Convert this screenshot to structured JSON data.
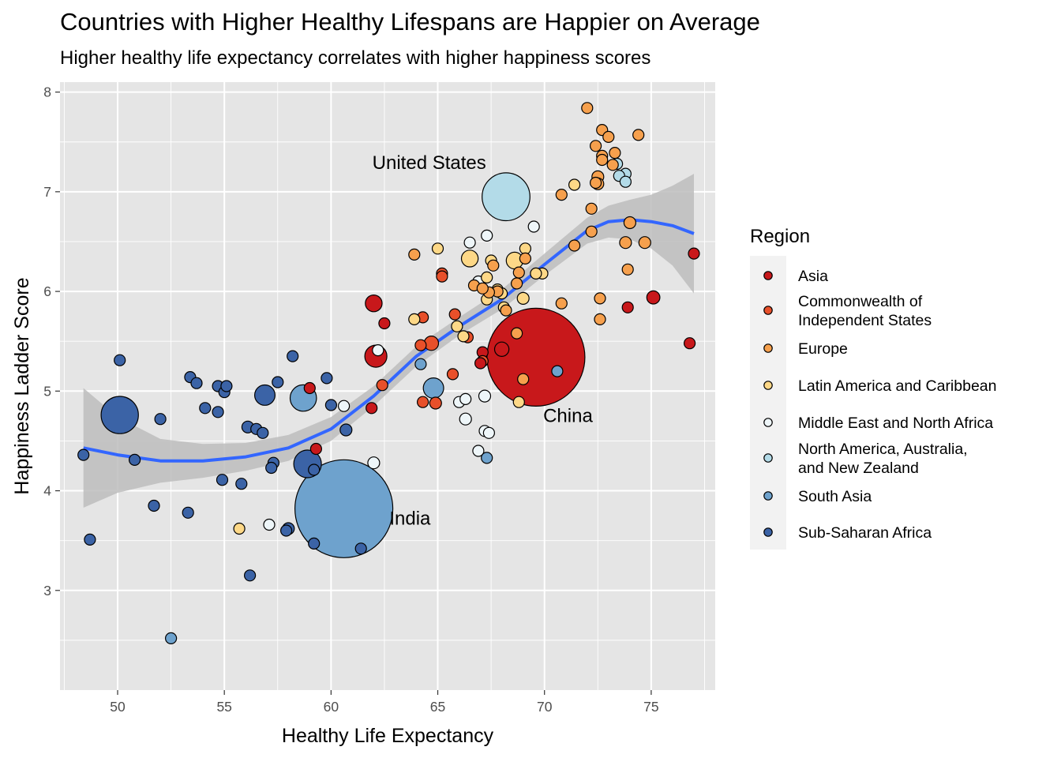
{
  "title": "Countries with Higher Healthy Lifespans are Happier on Average",
  "subtitle": "Higher healthy life expectancy correlates with higher happiness scores",
  "colors": {
    "panel_bg": "#e5e5e5",
    "grid": "#ffffff",
    "smooth_line": "#3366ff",
    "ribbon": "#bdbdbd",
    "Asia": "#c8181b",
    "Commonwealth of Independent States": "#e8502a",
    "Europe": "#f6a04d",
    "Latin America and Caribbean": "#fdd887",
    "Middle East and North Africa": "#eef6f9",
    "North America, Australia, and New Zealand": "#b3dbe8",
    "South Asia": "#6ea2cd",
    "Sub-Saharan Africa": "#3b63a6"
  },
  "chart_data": {
    "type": "scatter",
    "title": "Countries with Higher Healthy Lifespans are Happier on Average",
    "subtitle": "Higher healthy life expectancy correlates with higher happiness scores",
    "xlabel": "Healthy Life Expectancy",
    "ylabel": "Happiness Ladder Score",
    "xlim": [
      47.3,
      78.0
    ],
    "ylim": [
      2.0,
      8.1
    ],
    "xticks": [
      50,
      55,
      60,
      65,
      70,
      75
    ],
    "yticks": [
      3,
      4,
      5,
      6,
      7,
      8
    ],
    "grid": true,
    "legend": {
      "title": "Region",
      "placement": "right",
      "entries": [
        {
          "region": "Asia",
          "lines": [
            "Asia"
          ]
        },
        {
          "region": "Commonwealth of Independent States",
          "lines": [
            "Commonwealth of",
            "Independent States"
          ]
        },
        {
          "region": "Europe",
          "lines": [
            "Europe"
          ]
        },
        {
          "region": "Latin America and Caribbean",
          "lines": [
            "Latin America and Caribbean"
          ]
        },
        {
          "region": "Middle East and North Africa",
          "lines": [
            "Middle East and North Africa"
          ]
        },
        {
          "region": "North America, Australia, and New Zealand",
          "lines": [
            "North America, Australia,",
            "and New Zealand"
          ]
        },
        {
          "region": "South Asia",
          "lines": [
            "South Asia"
          ]
        },
        {
          "region": "Sub-Saharan Africa",
          "lines": [
            "Sub-Saharan Africa"
          ]
        }
      ]
    },
    "annotations": [
      {
        "text": "United States",
        "x": 64.6,
        "y": 7.23
      },
      {
        "text": "China",
        "x": 71.1,
        "y": 4.69
      },
      {
        "text": "India",
        "x": 63.7,
        "y": 3.66
      }
    ],
    "smooth": {
      "x": [
        48.4,
        50,
        52,
        54,
        56,
        58,
        60,
        62,
        64,
        66,
        68,
        70,
        72,
        73,
        74,
        75,
        76,
        77
      ],
      "y": [
        4.43,
        4.36,
        4.3,
        4.3,
        4.34,
        4.43,
        4.62,
        4.95,
        5.35,
        5.65,
        5.92,
        6.27,
        6.61,
        6.7,
        6.72,
        6.7,
        6.66,
        6.58
      ],
      "lower": [
        3.83,
        3.98,
        4.08,
        4.13,
        4.2,
        4.3,
        4.5,
        4.85,
        5.25,
        5.56,
        5.82,
        6.16,
        6.48,
        6.54,
        6.52,
        6.43,
        6.26,
        5.98
      ],
      "upper": [
        5.03,
        4.74,
        4.52,
        4.47,
        4.48,
        4.56,
        4.74,
        5.05,
        5.45,
        5.74,
        6.02,
        6.38,
        6.74,
        6.86,
        6.92,
        6.97,
        7.06,
        7.18
      ]
    },
    "size_note": "marker size scales with population",
    "series": [
      {
        "name": "Asia",
        "points": [
          {
            "x": 69.6,
            "y": 5.34,
            "size": 1411
          },
          {
            "x": 62.1,
            "y": 5.35,
            "size": 70
          },
          {
            "x": 62.0,
            "y": 5.88,
            "size": 40
          },
          {
            "x": 68.0,
            "y": 5.42,
            "size": 30
          },
          {
            "x": 75.1,
            "y": 5.94,
            "size": 25
          },
          {
            "x": 73.9,
            "y": 5.84,
            "size": 12
          },
          {
            "x": 77.0,
            "y": 6.38,
            "size": 10
          },
          {
            "x": 76.8,
            "y": 5.48,
            "size": 10
          },
          {
            "x": 62.5,
            "y": 5.68,
            "size": 8
          },
          {
            "x": 61.9,
            "y": 4.83,
            "size": 8
          },
          {
            "x": 59.0,
            "y": 5.03,
            "size": 7
          },
          {
            "x": 67.1,
            "y": 5.39,
            "size": 9
          },
          {
            "x": 67.0,
            "y": 5.28,
            "size": 8
          },
          {
            "x": 59.3,
            "y": 4.42,
            "size": 12
          }
        ]
      },
      {
        "name": "Commonwealth of Independent States",
        "points": [
          {
            "x": 64.7,
            "y": 5.48,
            "size": 30
          },
          {
            "x": 65.2,
            "y": 6.18,
            "size": 10
          },
          {
            "x": 65.2,
            "y": 6.15,
            "size": 10
          },
          {
            "x": 64.3,
            "y": 5.74,
            "size": 10
          },
          {
            "x": 64.2,
            "y": 5.46,
            "size": 10
          },
          {
            "x": 64.9,
            "y": 4.88,
            "size": 20
          },
          {
            "x": 64.3,
            "y": 4.89,
            "size": 9
          },
          {
            "x": 62.4,
            "y": 5.06,
            "size": 9
          },
          {
            "x": 65.8,
            "y": 5.77,
            "size": 9
          },
          {
            "x": 65.7,
            "y": 5.17,
            "size": 9
          },
          {
            "x": 66.4,
            "y": 5.54,
            "size": 9
          },
          {
            "x": 67.1,
            "y": 5.3,
            "size": 9
          }
        ]
      },
      {
        "name": "Europe",
        "points": [
          {
            "x": 72.0,
            "y": 7.84,
            "size": 6
          },
          {
            "x": 72.7,
            "y": 7.62,
            "size": 6
          },
          {
            "x": 74.4,
            "y": 7.57,
            "size": 6
          },
          {
            "x": 73.0,
            "y": 7.55,
            "size": 6
          },
          {
            "x": 72.4,
            "y": 7.46,
            "size": 6
          },
          {
            "x": 73.3,
            "y": 7.39,
            "size": 6
          },
          {
            "x": 72.7,
            "y": 7.36,
            "size": 6
          },
          {
            "x": 72.7,
            "y": 7.32,
            "size": 6
          },
          {
            "x": 73.2,
            "y": 7.27,
            "size": 6
          },
          {
            "x": 72.5,
            "y": 7.15,
            "size": 20
          },
          {
            "x": 72.5,
            "y": 7.08,
            "size": 20
          },
          {
            "x": 72.4,
            "y": 7.09,
            "size": 6
          },
          {
            "x": 70.8,
            "y": 6.97,
            "size": 6
          },
          {
            "x": 72.2,
            "y": 6.83,
            "size": 6
          },
          {
            "x": 74.0,
            "y": 6.69,
            "size": 20
          },
          {
            "x": 72.2,
            "y": 6.6,
            "size": 6
          },
          {
            "x": 73.8,
            "y": 6.49,
            "size": 20
          },
          {
            "x": 74.7,
            "y": 6.49,
            "size": 20
          },
          {
            "x": 71.4,
            "y": 6.46,
            "size": 6
          },
          {
            "x": 69.1,
            "y": 6.33,
            "size": 6
          },
          {
            "x": 73.9,
            "y": 6.22,
            "size": 6
          },
          {
            "x": 68.8,
            "y": 6.19,
            "size": 6
          },
          {
            "x": 72.6,
            "y": 5.93,
            "size": 6
          },
          {
            "x": 70.8,
            "y": 5.88,
            "size": 6
          },
          {
            "x": 72.6,
            "y": 5.72,
            "size": 6
          },
          {
            "x": 68.2,
            "y": 5.81,
            "size": 6
          },
          {
            "x": 68.7,
            "y": 5.58,
            "size": 6
          },
          {
            "x": 69.0,
            "y": 5.12,
            "size": 6
          },
          {
            "x": 63.9,
            "y": 6.37,
            "size": 6
          },
          {
            "x": 67.6,
            "y": 6.26,
            "size": 6
          },
          {
            "x": 66.7,
            "y": 6.06,
            "size": 6
          },
          {
            "x": 67.8,
            "y": 6.0,
            "size": 6
          },
          {
            "x": 68.7,
            "y": 6.08,
            "size": 6
          },
          {
            "x": 67.4,
            "y": 5.99,
            "size": 6
          },
          {
            "x": 67.1,
            "y": 6.03,
            "size": 6
          }
        ]
      },
      {
        "name": "Latin America and Caribbean",
        "points": [
          {
            "x": 66.5,
            "y": 6.33,
            "size": 40
          },
          {
            "x": 68.6,
            "y": 6.31,
            "size": 40
          },
          {
            "x": 69.0,
            "y": 5.93,
            "size": 20
          },
          {
            "x": 68.8,
            "y": 4.89,
            "size": 12
          },
          {
            "x": 65.0,
            "y": 6.43,
            "size": 7
          },
          {
            "x": 69.1,
            "y": 6.43,
            "size": 7
          },
          {
            "x": 67.5,
            "y": 6.31,
            "size": 7
          },
          {
            "x": 67.3,
            "y": 6.14,
            "size": 7
          },
          {
            "x": 69.9,
            "y": 6.18,
            "size": 7
          },
          {
            "x": 69.6,
            "y": 6.18,
            "size": 7
          },
          {
            "x": 67.8,
            "y": 6.02,
            "size": 7
          },
          {
            "x": 68.0,
            "y": 5.98,
            "size": 7
          },
          {
            "x": 67.3,
            "y": 5.92,
            "size": 7
          },
          {
            "x": 68.1,
            "y": 5.84,
            "size": 7
          },
          {
            "x": 63.9,
            "y": 5.72,
            "size": 7
          },
          {
            "x": 65.9,
            "y": 5.65,
            "size": 7
          },
          {
            "x": 66.2,
            "y": 5.55,
            "size": 7
          },
          {
            "x": 71.4,
            "y": 7.07,
            "size": 7
          },
          {
            "x": 55.7,
            "y": 3.62,
            "size": 7
          }
        ]
      },
      {
        "name": "Middle East and North Africa",
        "points": [
          {
            "x": 62.0,
            "y": 4.28,
            "size": 20
          },
          {
            "x": 60.6,
            "y": 4.85,
            "size": 9
          },
          {
            "x": 57.1,
            "y": 3.66,
            "size": 9
          },
          {
            "x": 62.2,
            "y": 5.41,
            "size": 6
          },
          {
            "x": 67.2,
            "y": 4.95,
            "size": 20
          },
          {
            "x": 66.3,
            "y": 4.72,
            "size": 20
          },
          {
            "x": 66.0,
            "y": 4.89,
            "size": 9
          },
          {
            "x": 66.3,
            "y": 4.92,
            "size": 9
          },
          {
            "x": 67.2,
            "y": 4.6,
            "size": 9
          },
          {
            "x": 67.4,
            "y": 4.58,
            "size": 9
          },
          {
            "x": 66.9,
            "y": 4.4,
            "size": 9
          },
          {
            "x": 66.5,
            "y": 6.49,
            "size": 9
          },
          {
            "x": 67.3,
            "y": 6.56,
            "size": 9
          },
          {
            "x": 66.9,
            "y": 6.1,
            "size": 9
          },
          {
            "x": 69.5,
            "y": 6.65,
            "size": 9
          }
        ]
      },
      {
        "name": "North America, Australia, and New Zealand",
        "points": [
          {
            "x": 68.2,
            "y": 6.95,
            "size": 330
          },
          {
            "x": 73.4,
            "y": 7.28,
            "size": 10
          },
          {
            "x": 73.8,
            "y": 7.18,
            "size": 10
          },
          {
            "x": 73.5,
            "y": 7.16,
            "size": 10
          },
          {
            "x": 73.8,
            "y": 7.1,
            "size": 10
          }
        ]
      },
      {
        "name": "South Asia",
        "points": [
          {
            "x": 60.6,
            "y": 3.82,
            "size": 1380
          },
          {
            "x": 58.7,
            "y": 4.93,
            "size": 100
          },
          {
            "x": 64.8,
            "y": 5.03,
            "size": 60
          },
          {
            "x": 52.5,
            "y": 2.52,
            "size": 15
          },
          {
            "x": 64.2,
            "y": 5.27,
            "size": 10
          },
          {
            "x": 70.6,
            "y": 5.2,
            "size": 6
          },
          {
            "x": 67.3,
            "y": 4.33,
            "size": 7
          }
        ]
      },
      {
        "name": "Sub-Saharan Africa",
        "points": [
          {
            "x": 50.1,
            "y": 4.76,
            "size": 200
          },
          {
            "x": 58.9,
            "y": 4.27,
            "size": 110
          },
          {
            "x": 56.9,
            "y": 4.96,
            "size": 60
          },
          {
            "x": 50.1,
            "y": 5.31,
            "size": 15
          },
          {
            "x": 48.4,
            "y": 4.36,
            "size": 15
          },
          {
            "x": 48.7,
            "y": 3.51,
            "size": 15
          },
          {
            "x": 50.8,
            "y": 4.31,
            "size": 15
          },
          {
            "x": 51.7,
            "y": 3.85,
            "size": 15
          },
          {
            "x": 52.0,
            "y": 4.72,
            "size": 15
          },
          {
            "x": 53.4,
            "y": 5.14,
            "size": 15
          },
          {
            "x": 53.7,
            "y": 5.08,
            "size": 15
          },
          {
            "x": 54.1,
            "y": 4.83,
            "size": 15
          },
          {
            "x": 53.3,
            "y": 3.78,
            "size": 15
          },
          {
            "x": 54.7,
            "y": 5.05,
            "size": 15
          },
          {
            "x": 55.0,
            "y": 4.99,
            "size": 15
          },
          {
            "x": 55.1,
            "y": 5.05,
            "size": 15
          },
          {
            "x": 54.7,
            "y": 4.79,
            "size": 15
          },
          {
            "x": 54.9,
            "y": 4.11,
            "size": 15
          },
          {
            "x": 55.8,
            "y": 4.07,
            "size": 15
          },
          {
            "x": 56.1,
            "y": 4.64,
            "size": 20
          },
          {
            "x": 56.5,
            "y": 4.62,
            "size": 15
          },
          {
            "x": 56.8,
            "y": 4.58,
            "size": 15
          },
          {
            "x": 57.5,
            "y": 5.09,
            "size": 15
          },
          {
            "x": 57.3,
            "y": 4.28,
            "size": 15
          },
          {
            "x": 57.2,
            "y": 4.23,
            "size": 15
          },
          {
            "x": 58.0,
            "y": 3.62,
            "size": 20
          },
          {
            "x": 57.9,
            "y": 3.6,
            "size": 15
          },
          {
            "x": 58.2,
            "y": 5.35,
            "size": 15
          },
          {
            "x": 59.2,
            "y": 4.21,
            "size": 15
          },
          {
            "x": 59.2,
            "y": 3.47,
            "size": 15
          },
          {
            "x": 59.8,
            "y": 5.13,
            "size": 15
          },
          {
            "x": 60.0,
            "y": 4.86,
            "size": 15
          },
          {
            "x": 60.7,
            "y": 4.61,
            "size": 20
          },
          {
            "x": 61.4,
            "y": 3.42,
            "size": 15
          },
          {
            "x": 56.2,
            "y": 3.15,
            "size": 15
          }
        ]
      }
    ]
  }
}
